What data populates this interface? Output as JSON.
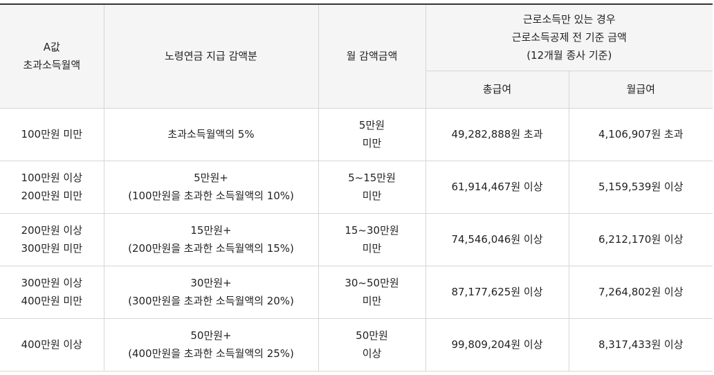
{
  "table": {
    "headers": {
      "col1": [
        "A값",
        "초과소득월액"
      ],
      "col2": "노령연금 지급 감액분",
      "col3": "월 감액금액",
      "group": [
        "근로소득만 있는 경우",
        "근로소득공제 전 기준 금액",
        "(12개월 종사 기준)"
      ],
      "sub1": "총급여",
      "sub2": "월급여"
    },
    "rows": [
      {
        "range": [
          "100만원 미만"
        ],
        "reduction": [
          "초과소득월액의 5%"
        ],
        "monthly": [
          "5만원",
          "미만"
        ],
        "annual": "49,282,888원 초과",
        "monthly_wage": "4,106,907원 초과"
      },
      {
        "range": [
          "100만원 이상",
          "200만원 미만"
        ],
        "reduction": [
          "5만원+",
          "(100만원을 초과한 소득월액의 10%)"
        ],
        "monthly": [
          "5~15만원",
          "미만"
        ],
        "annual": "61,914,467원 이상",
        "monthly_wage": "5,159,539원 이상"
      },
      {
        "range": [
          "200만원 이상",
          "300만원 미만"
        ],
        "reduction": [
          "15만원+",
          "(200만원을 초과한 소득월액의 15%)"
        ],
        "monthly": [
          "15~30만원",
          "미만"
        ],
        "annual": "74,546,046원 이상",
        "monthly_wage": "6,212,170원 이상"
      },
      {
        "range": [
          "300만원 이상",
          "400만원 미만"
        ],
        "reduction": [
          "30만원+",
          "(300만원을 초과한 소득월액의 20%)"
        ],
        "monthly": [
          "30~50만원",
          "미만"
        ],
        "annual": "87,177,625원 이상",
        "monthly_wage": "7,264,802원 이상"
      },
      {
        "range": [
          "400만원 이상"
        ],
        "reduction": [
          "50만원+",
          "(400만원을 초과한 소득월액의 25%)"
        ],
        "monthly": [
          "50만원",
          "이상"
        ],
        "annual": "99,809,204원 이상",
        "monthly_wage": "8,317,433원 이상"
      }
    ]
  }
}
